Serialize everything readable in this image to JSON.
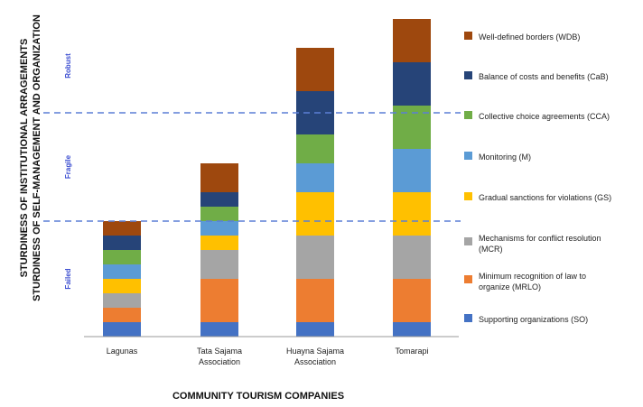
{
  "chart_data": {
    "type": "bar",
    "stacked": true,
    "title": "",
    "xlabel": "COMMUNITY TOURISM COMPANIES",
    "ylabel_lines": [
      "STURDINESS OF INSTITUTIONAL ARRAGEMENTS",
      "STURDINESS OF SELF-MANAGEMENT AND ORGANIZATION"
    ],
    "categories": [
      [
        "Lagunas"
      ],
      [
        "Tata Sajama",
        "Association"
      ],
      [
        "Huayna Sajama",
        "Association"
      ],
      [
        "Tomarapi"
      ]
    ],
    "ylim": [
      0,
      22
    ],
    "thresholds": [
      {
        "label": "Failed",
        "value": 8
      },
      {
        "label": "Fragile",
        "value": 15.5
      },
      {
        "label": "Robust",
        "value": 22
      }
    ],
    "legend_placement": "right",
    "series": [
      {
        "name": "Supporting organizations (SO)",
        "color": "#4472c4",
        "values": [
          1,
          1,
          1,
          1
        ]
      },
      {
        "name": "Minimum recognition of law to organize (MRLO)",
        "color": "#ed7d31",
        "values": [
          1,
          3,
          3,
          3
        ]
      },
      {
        "name": "Mechanisms for conflict resolution (MCR)",
        "color": "#a5a5a5",
        "values": [
          1,
          2,
          3,
          3
        ]
      },
      {
        "name": "Gradual sanctions for violations (GS)",
        "color": "#ffc000",
        "values": [
          1,
          1,
          3,
          3
        ]
      },
      {
        "name": "Monitoring (M)",
        "color": "#5b9bd5",
        "values": [
          1,
          1,
          2,
          3
        ]
      },
      {
        "name": "Collective choice agreements (CCA)",
        "color": "#70ad47",
        "values": [
          1,
          1,
          2,
          3
        ]
      },
      {
        "name": "Balance of costs and benefits (CaB)",
        "color": "#264478",
        "values": [
          1,
          1,
          3,
          3
        ]
      },
      {
        "name": "Well-defined borders (WDB)",
        "color": "#9e480e",
        "values": [
          1,
          2,
          3,
          3
        ]
      }
    ]
  }
}
